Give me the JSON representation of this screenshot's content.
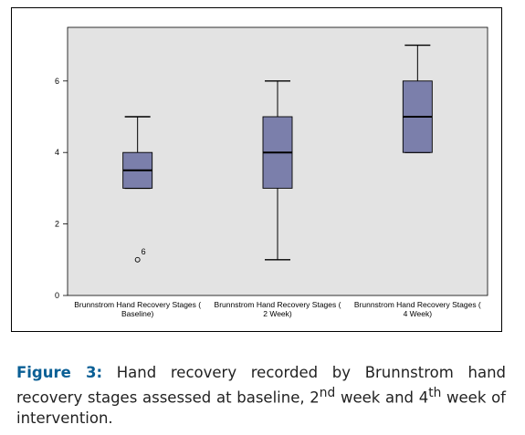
{
  "chart_data": {
    "type": "boxplot",
    "categories": [
      [
        "Brunnstrom Hand Recovery Stages (",
        "Baseline)"
      ],
      [
        "Brunnstrom Hand Recovery Stages (",
        "2 Week)"
      ],
      [
        "Brunnstrom Hand Recovery Stages (",
        "4 Week)"
      ]
    ],
    "boxes": [
      {
        "whisker_low": 3,
        "q1": 3,
        "median": 3.5,
        "q3": 4,
        "whisker_high": 5
      },
      {
        "whisker_low": 1,
        "q1": 3,
        "median": 4,
        "q3": 5,
        "whisker_high": 6
      },
      {
        "whisker_low": 4,
        "q1": 4,
        "median": 5,
        "q3": 6,
        "whisker_high": 7
      }
    ],
    "outliers": [
      {
        "category": 0,
        "value": 1,
        "label": "6"
      }
    ],
    "ylim": [
      0,
      7.5
    ],
    "yticks": [
      "0",
      "2",
      "4",
      "6"
    ],
    "colors": {
      "box_fill": "#7b7fab",
      "plot_bg": "#e3e3e3",
      "frame": "#000000"
    },
    "grid": false
  },
  "caption": {
    "label": "Figure 3:",
    "text_1": " Hand recovery recorded by Brunnstrom hand recovery stages assessed at baseline, 2",
    "sup_1": "nd",
    "text_2": " week and 4",
    "sup_2": "th",
    "text_3": " week of intervention."
  }
}
